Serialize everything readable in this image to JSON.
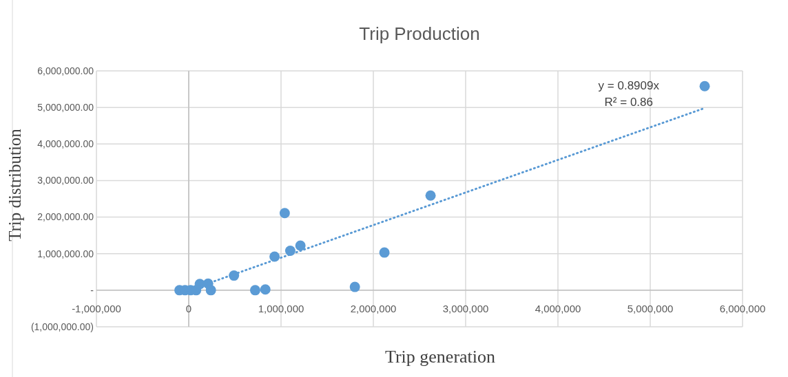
{
  "chart_data": {
    "type": "scatter",
    "title": "Trip Production",
    "xlabel": "Trip generation",
    "ylabel": "Trip distribution",
    "xlim": [
      -1000000,
      6000000
    ],
    "ylim": [
      -1000000,
      6000000
    ],
    "xticks": [
      {
        "value": -1000000,
        "label": "-1,000,000"
      },
      {
        "value": 0,
        "label": "0"
      },
      {
        "value": 1000000,
        "label": "1,000,000"
      },
      {
        "value": 2000000,
        "label": "2,000,000"
      },
      {
        "value": 3000000,
        "label": "3,000,000"
      },
      {
        "value": 4000000,
        "label": "4,000,000"
      },
      {
        "value": 5000000,
        "label": "5,000,000"
      },
      {
        "value": 6000000,
        "label": "6,000,000"
      }
    ],
    "yticks": [
      {
        "value": -1000000,
        "label": "(1,000,000.00)"
      },
      {
        "value": 0,
        "label": "-"
      },
      {
        "value": 1000000,
        "label": "1,000,000.00"
      },
      {
        "value": 2000000,
        "label": "2,000,000.00"
      },
      {
        "value": 3000000,
        "label": "3,000,000.00"
      },
      {
        "value": 4000000,
        "label": "4,000,000.00"
      },
      {
        "value": 5000000,
        "label": "5,000,000.00"
      },
      {
        "value": 6000000,
        "label": "6,000,000.00"
      }
    ],
    "grid": true,
    "series": [
      {
        "color": "#5b9bd5",
        "marker": "circle",
        "x": [
          -100000,
          -40000,
          20000,
          80000,
          120000,
          210000,
          240000,
          490000,
          720000,
          830000,
          930000,
          1040000,
          1100000,
          1210000,
          1800000,
          2120000,
          2620000,
          5590000
        ],
        "values": [
          0,
          0,
          0,
          0,
          170000,
          180000,
          0,
          400000,
          0,
          20000,
          920000,
          2110000,
          1080000,
          1220000,
          90000,
          1030000,
          2590000,
          5580000
        ]
      },
      {
        "type": "line",
        "color": "#5b9bd5",
        "marker": "none",
        "line_style": "dotted",
        "x": [
          -100000,
          5588000
        ],
        "values": [
          -90000,
          4980000
        ]
      }
    ],
    "annotations": [
      "y = 0.8909x",
      "R² = 0.86"
    ]
  }
}
